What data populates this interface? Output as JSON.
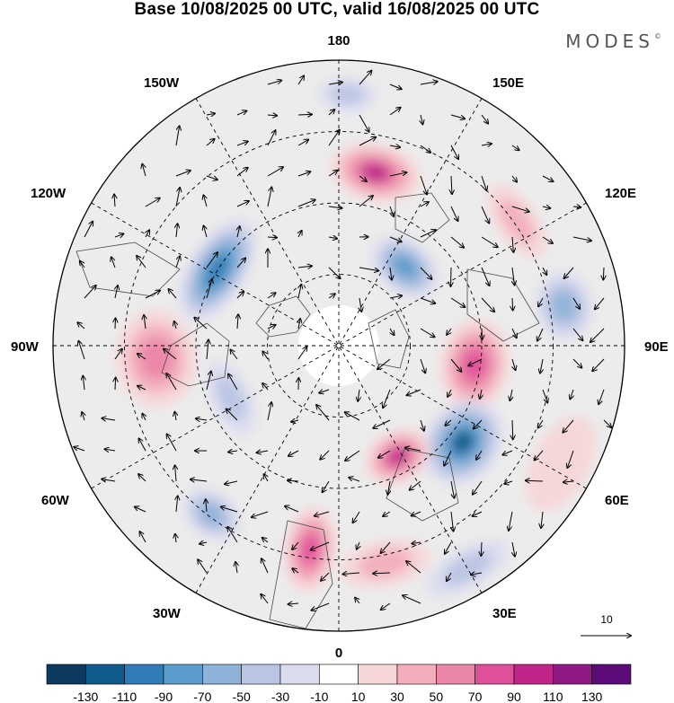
{
  "title": "Base 10/08/2025 00 UTC, valid 16/08/2025 00 UTC",
  "brand": "MODES",
  "brand_mark": "©",
  "longitude_labels": {
    "top": "180",
    "bottom": "0",
    "left": "90W",
    "right": "90E",
    "upper_left_1": "150W",
    "upper_left_2": "120W",
    "lower_left_1": "60W",
    "lower_left_2": "30W",
    "upper_right_1": "150E",
    "upper_right_2": "120E",
    "lower_right_1": "60E",
    "lower_right_2": "30E"
  },
  "vector_reference_label": "10",
  "colorbar": {
    "ticks": [
      "-130",
      "-110",
      "-90",
      "-70",
      "-50",
      "-30",
      "-10",
      "10",
      "30",
      "50",
      "70",
      "90",
      "110",
      "130"
    ],
    "colors": [
      "#0b3a5e",
      "#0f5c8c",
      "#2f7cb6",
      "#5a9ccb",
      "#8fb3d8",
      "#b9c5e3",
      "#dcdcef",
      "#ffffff",
      "#f7d6d8",
      "#f2aebc",
      "#ea86a8",
      "#e0509a",
      "#c0268a",
      "#8f1a83",
      "#5c0c78"
    ]
  },
  "anomalies": [
    {
      "lon": 168,
      "r": 0.62,
      "value": 95,
      "rx": 0.16,
      "ry": 0.1
    },
    {
      "lon": 140,
      "r": 0.36,
      "value": -80,
      "rx": 0.13,
      "ry": 0.09
    },
    {
      "lon": 178,
      "r": 0.88,
      "value": -40,
      "rx": 0.1,
      "ry": 0.06
    },
    {
      "lon": 125,
      "r": 0.76,
      "value": 45,
      "rx": 0.15,
      "ry": 0.07
    },
    {
      "lon": 100,
      "r": 0.8,
      "value": -70,
      "rx": 0.12,
      "ry": 0.1
    },
    {
      "lon": 82,
      "r": 0.48,
      "value": 80,
      "rx": 0.16,
      "ry": 0.12
    },
    {
      "lon": 52,
      "r": 0.55,
      "value": -120,
      "rx": 0.16,
      "ry": 0.13
    },
    {
      "lon": 28,
      "r": 0.44,
      "value": 95,
      "rx": 0.12,
      "ry": 0.09
    },
    {
      "lon": 12,
      "r": 0.78,
      "value": 45,
      "rx": 0.16,
      "ry": 0.08
    },
    {
      "lon": -8,
      "r": 0.72,
      "value": 85,
      "rx": 0.09,
      "ry": 0.15
    },
    {
      "lon": -37,
      "r": 0.74,
      "value": -75,
      "rx": 0.11,
      "ry": 0.08
    },
    {
      "lon": -64,
      "r": 0.42,
      "value": -40,
      "rx": 0.14,
      "ry": 0.07
    },
    {
      "lon": -86,
      "r": 0.64,
      "value": 70,
      "rx": 0.17,
      "ry": 0.14
    },
    {
      "lon": -122,
      "r": 0.5,
      "value": -105,
      "rx": 0.2,
      "ry": 0.1
    },
    {
      "lon": 30,
      "r": 0.9,
      "value": -40,
      "rx": 0.16,
      "ry": 0.07
    },
    {
      "lon": 62,
      "r": 0.88,
      "value": 25,
      "rx": 0.18,
      "ry": 0.1
    }
  ]
}
